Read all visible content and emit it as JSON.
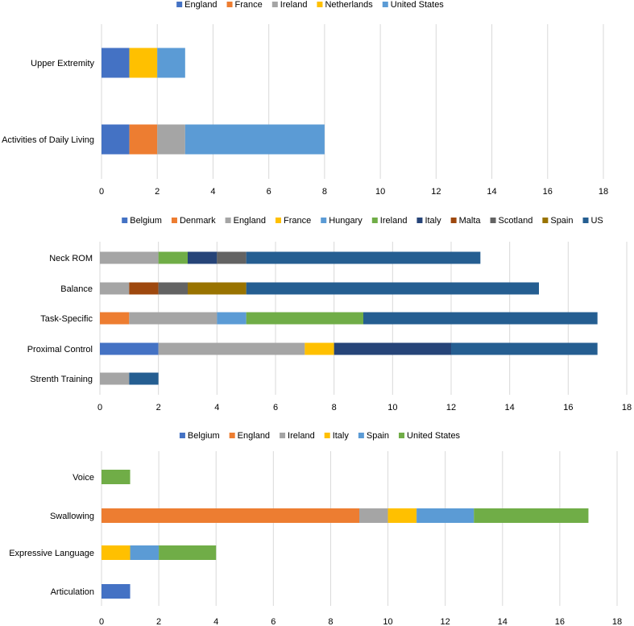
{
  "chart_data": [
    {
      "type": "bar",
      "orientation": "horizontal",
      "stacked": true,
      "title": "",
      "xlabel": "",
      "ylabel": "",
      "xlim": [
        0,
        18
      ],
      "xticks": [
        0,
        2,
        4,
        6,
        8,
        10,
        12,
        14,
        16,
        18
      ],
      "grid": true,
      "legend_position": "top",
      "categories": [
        "Upper Extremity",
        "Activities of Daily Living"
      ],
      "series": [
        {
          "name": "England",
          "color": "#4472c4",
          "values": [
            1,
            1
          ]
        },
        {
          "name": "France",
          "color": "#ed7d31",
          "values": [
            0,
            1
          ]
        },
        {
          "name": "Ireland",
          "color": "#a5a5a5",
          "values": [
            0,
            1
          ]
        },
        {
          "name": "Netherlands",
          "color": "#ffc000",
          "values": [
            1,
            0
          ]
        },
        {
          "name": "United States",
          "color": "#5b9bd5",
          "values": [
            1,
            5
          ]
        }
      ]
    },
    {
      "type": "bar",
      "orientation": "horizontal",
      "stacked": true,
      "title": "",
      "xlabel": "",
      "ylabel": "",
      "xlim": [
        0,
        18
      ],
      "xticks": [
        0,
        2,
        4,
        6,
        8,
        10,
        12,
        14,
        16,
        18
      ],
      "grid": true,
      "legend_position": "top",
      "categories": [
        "Neck ROM",
        "Balance",
        "Task-Specific",
        "Proximal Control",
        "Strenth Training"
      ],
      "series": [
        {
          "name": "Belgium",
          "color": "#4472c4",
          "values": [
            0,
            0,
            0,
            2,
            0
          ]
        },
        {
          "name": "Denmark",
          "color": "#ed7d31",
          "values": [
            0,
            0,
            1,
            0,
            0
          ]
        },
        {
          "name": "England",
          "color": "#a5a5a5",
          "values": [
            2,
            1,
            3,
            5,
            1
          ]
        },
        {
          "name": "France",
          "color": "#ffc000",
          "values": [
            0,
            0,
            0,
            1,
            0
          ]
        },
        {
          "name": "Hungary",
          "color": "#5b9bd5",
          "values": [
            0,
            0,
            1,
            0,
            0
          ]
        },
        {
          "name": "Ireland",
          "color": "#70ad47",
          "values": [
            1,
            0,
            4,
            0,
            0
          ]
        },
        {
          "name": "Italy",
          "color": "#264478",
          "values": [
            1,
            0,
            0,
            4,
            0
          ]
        },
        {
          "name": "Malta",
          "color": "#9e480e",
          "values": [
            0,
            1,
            0,
            0,
            0
          ]
        },
        {
          "name": "Scotland",
          "color": "#636363",
          "values": [
            1,
            1,
            0,
            0,
            0
          ]
        },
        {
          "name": "Spain",
          "color": "#997300",
          "values": [
            0,
            2,
            0,
            0,
            0
          ]
        },
        {
          "name": "US",
          "color": "#255e91",
          "values": [
            8,
            10,
            8,
            5,
            1
          ]
        }
      ]
    },
    {
      "type": "bar",
      "orientation": "horizontal",
      "stacked": true,
      "title": "",
      "xlabel": "",
      "ylabel": "",
      "xlim": [
        0,
        18
      ],
      "xticks": [
        0,
        2,
        4,
        6,
        8,
        10,
        12,
        14,
        16,
        18
      ],
      "grid": true,
      "legend_position": "top",
      "categories": [
        "Voice",
        "Swallowing",
        "Expressive Language",
        "Articulation"
      ],
      "series": [
        {
          "name": "Belgium",
          "color": "#4472c4",
          "values": [
            0,
            0,
            0,
            1
          ]
        },
        {
          "name": "England",
          "color": "#ed7d31",
          "values": [
            0,
            9,
            0,
            0
          ]
        },
        {
          "name": "Ireland",
          "color": "#a5a5a5",
          "values": [
            0,
            1,
            0,
            0
          ]
        },
        {
          "name": "Italy",
          "color": "#ffc000",
          "values": [
            0,
            1,
            1,
            0
          ]
        },
        {
          "name": "Spain",
          "color": "#5b9bd5",
          "values": [
            0,
            2,
            1,
            0
          ]
        },
        {
          "name": "United States",
          "color": "#70ad47",
          "values": [
            1,
            4,
            2,
            0
          ]
        }
      ]
    }
  ]
}
